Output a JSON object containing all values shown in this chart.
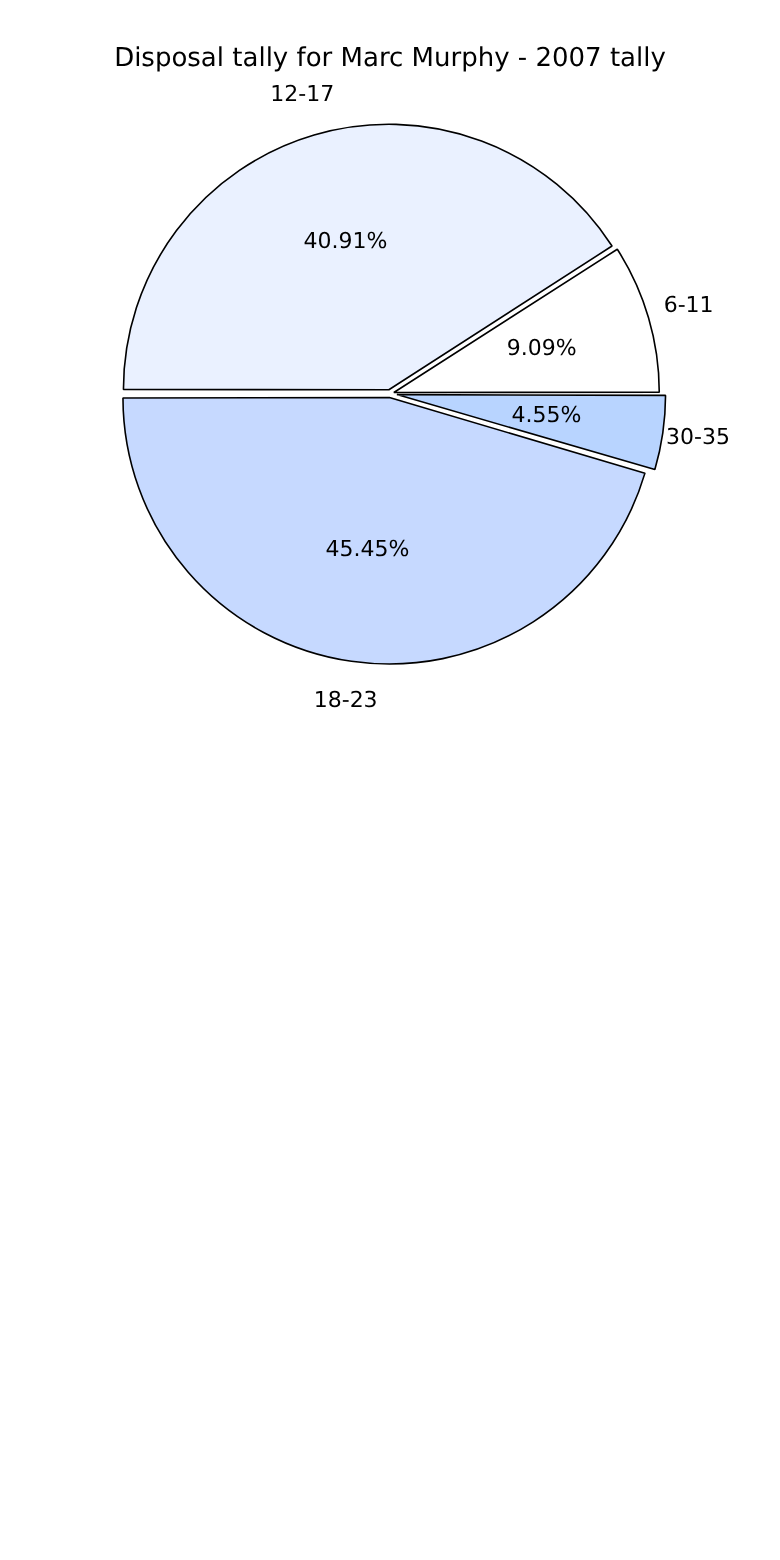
{
  "chart_data": {
    "type": "pie",
    "title": "Disposal tally for Marc Murphy - 2007 tally",
    "categories": [
      "6-11",
      "12-17",
      "18-23",
      "30-35"
    ],
    "values": [
      9.09,
      40.91,
      45.45,
      4.55
    ],
    "value_labels": [
      "9.09%",
      "40.91%",
      "45.45%",
      "4.55%"
    ],
    "colors": [
      "#ffffff",
      "#eaf1ff",
      "#c6d9ff",
      "#b8d4ff"
    ],
    "legend": false
  }
}
